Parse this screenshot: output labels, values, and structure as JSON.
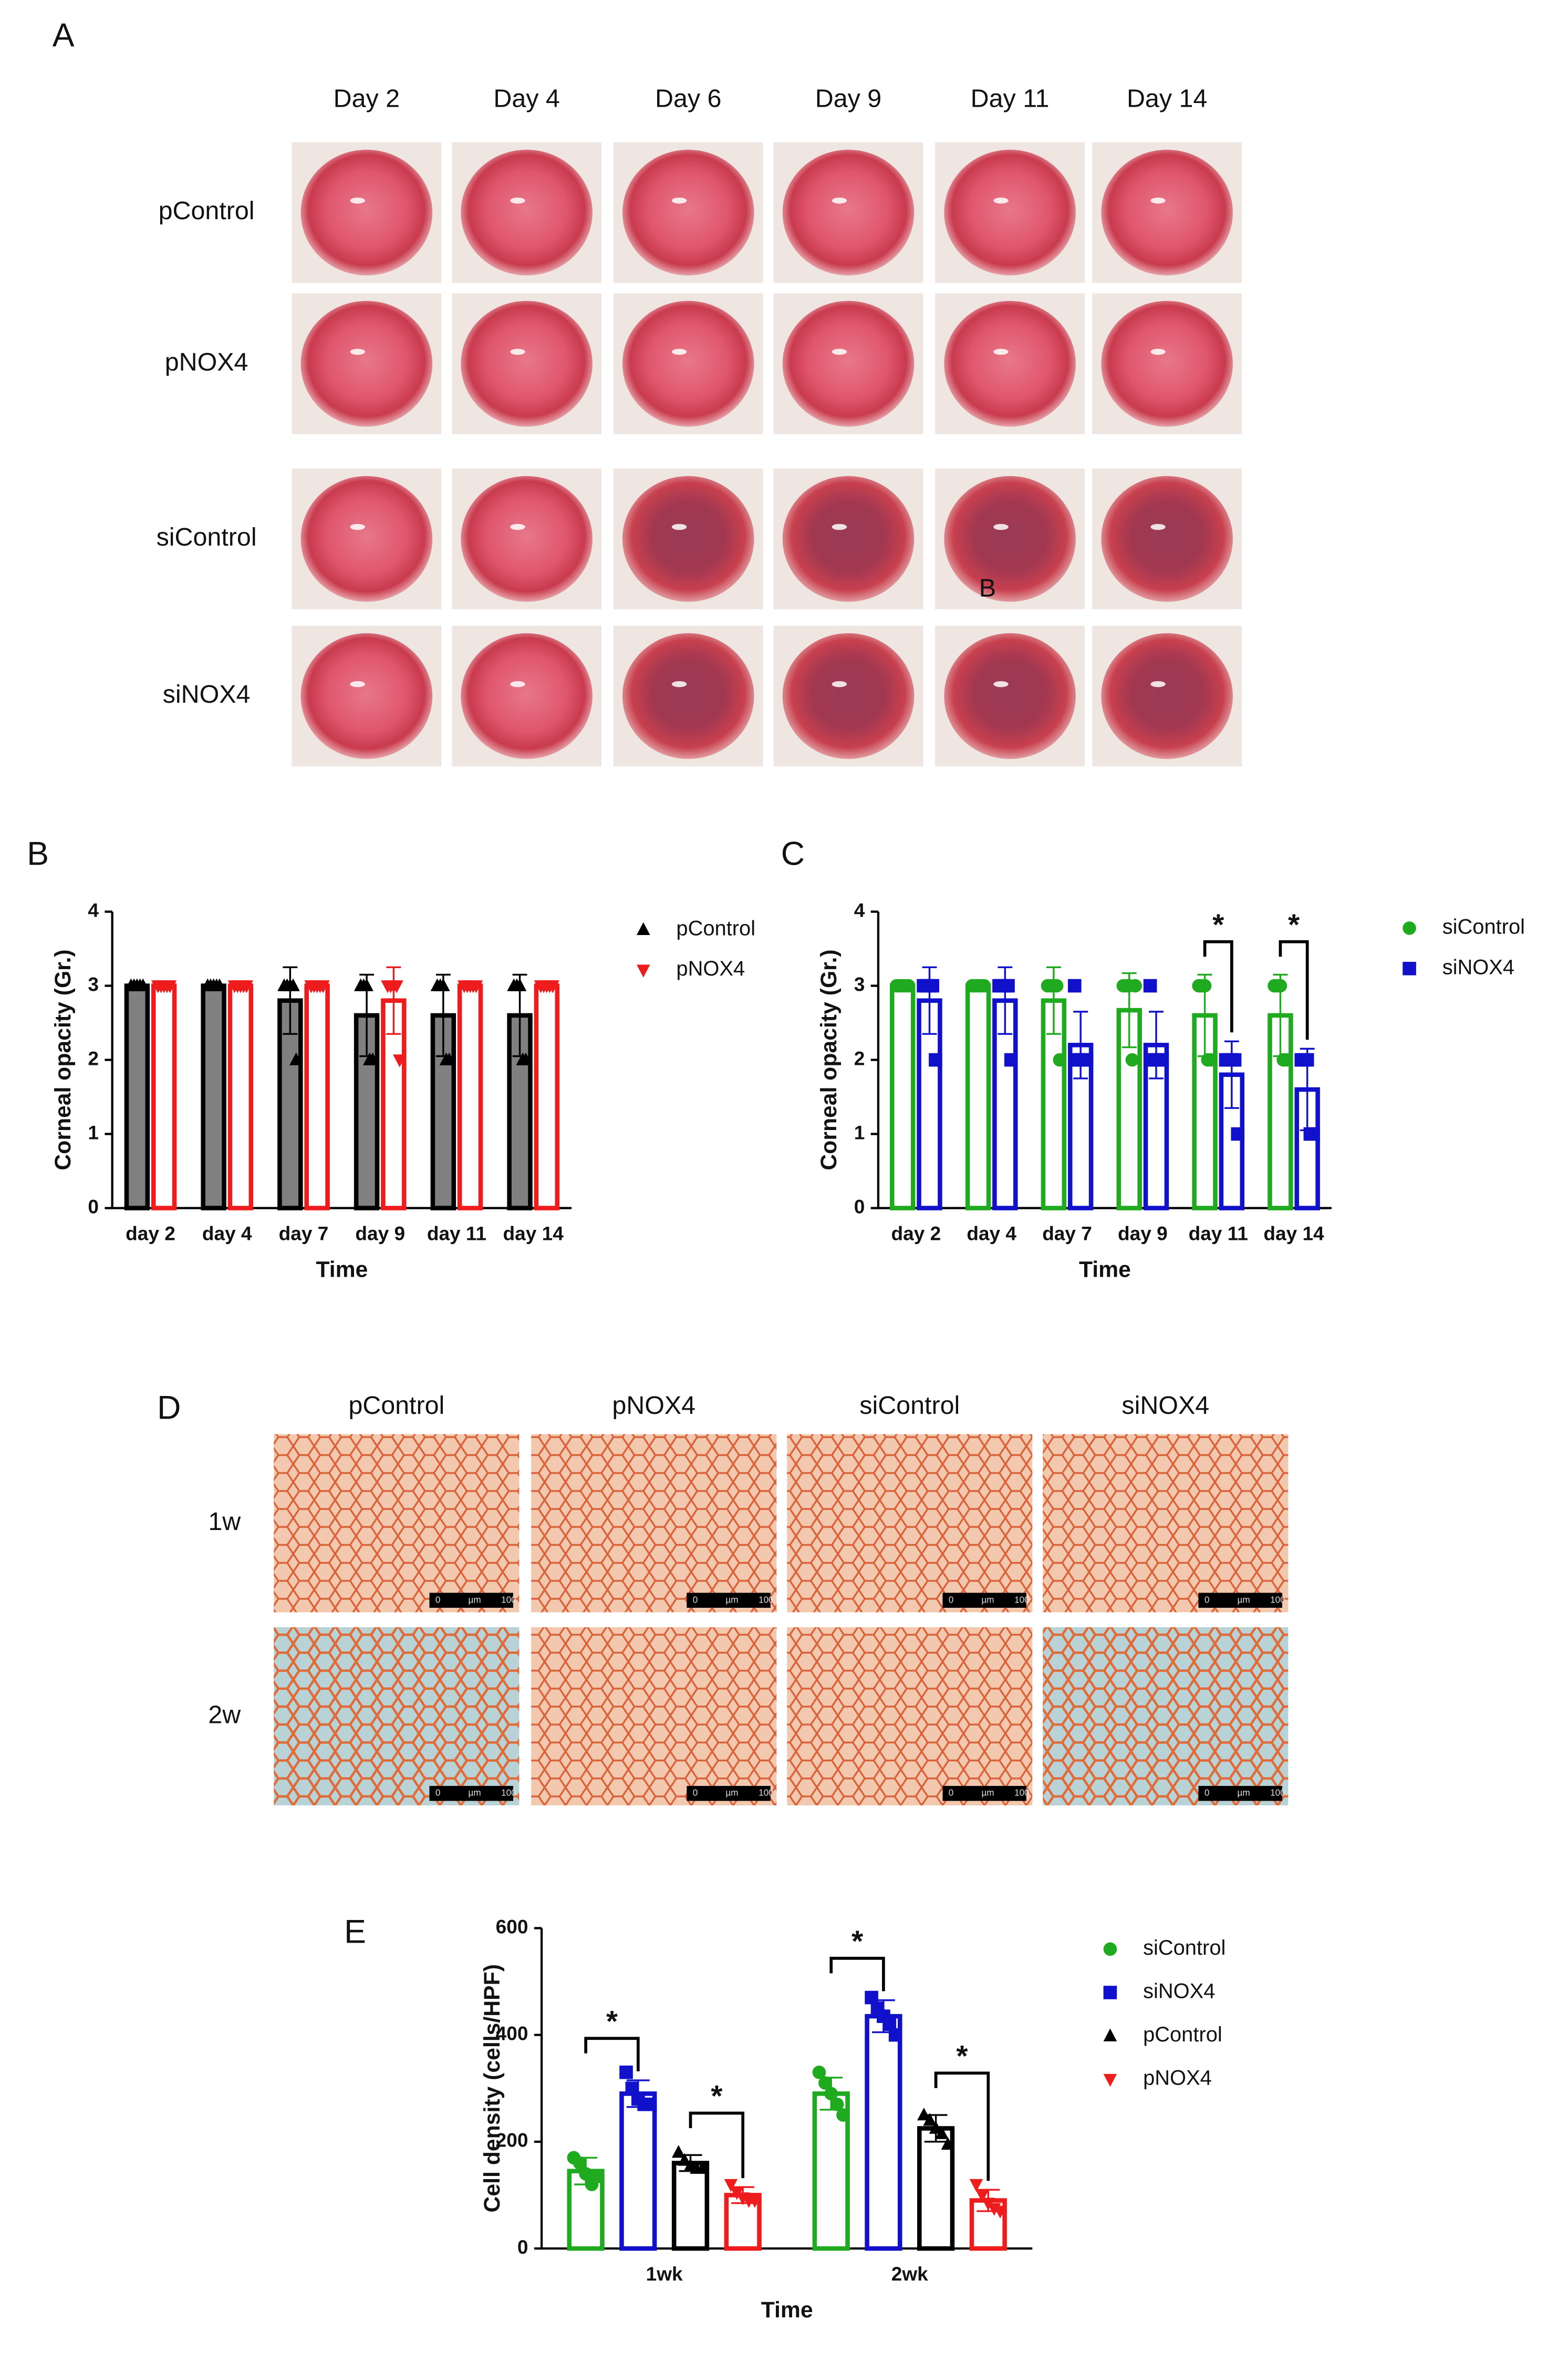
{
  "panel_labels": [
    "A",
    "B",
    "C",
    "D",
    "E"
  ],
  "panel_a": {
    "columns": [
      "Day 2",
      "Day 4",
      "Day 6",
      "Day 9",
      "Day 11",
      "Day 14"
    ],
    "rows": [
      "pControl",
      "pNOX4",
      "siControl",
      "siNOX4"
    ],
    "overlay_label": "B"
  },
  "panel_d": {
    "columns": [
      "pControl",
      "pNOX4",
      "siControl",
      "siNOX4"
    ],
    "rows": [
      "1w",
      "2w"
    ],
    "scale_bar": [
      "0",
      "µm",
      "100"
    ]
  },
  "chart_data": [
    {
      "type": "bar",
      "ylabel": "Corneal opacity (Gr.)",
      "xlabel": "Time",
      "categories": [
        "day 2",
        "day 4",
        "day 7",
        "day 9",
        "day 11",
        "day 14"
      ],
      "ylim": [
        0,
        4
      ],
      "yticks": [
        0,
        1,
        2,
        3,
        4
      ],
      "series": [
        {
          "name": "pControl",
          "color": "#000000",
          "bar_fill": "#808080",
          "marker": "triangle-up",
          "values": [
            3,
            3,
            2.8,
            2.6,
            2.6,
            2.6
          ],
          "errors": [
            0,
            0,
            0.45,
            0.55,
            0.55,
            0.55
          ],
          "points": [
            [
              3,
              3,
              3,
              3,
              3
            ],
            [
              3,
              3,
              3,
              3,
              3
            ],
            [
              3,
              3,
              3,
              3,
              2
            ],
            [
              3,
              3,
              3,
              2,
              2
            ],
            [
              3,
              3,
              3,
              2,
              2
            ],
            [
              3,
              3,
              3,
              2,
              2
            ]
          ]
        },
        {
          "name": "pNOX4",
          "color": "#ee1c1c",
          "marker": "triangle-down",
          "values": [
            3,
            3,
            3,
            2.8,
            3,
            3
          ],
          "errors": [
            0,
            0,
            0,
            0.45,
            0,
            0
          ],
          "points": [
            [
              3,
              3,
              3,
              3,
              3
            ],
            [
              3,
              3,
              3,
              3,
              3
            ],
            [
              3,
              3,
              3,
              3,
              3
            ],
            [
              3,
              3,
              3,
              3,
              2
            ],
            [
              3,
              3,
              3,
              3,
              3
            ],
            [
              3,
              3,
              3,
              3,
              3
            ]
          ]
        }
      ]
    },
    {
      "type": "bar",
      "ylabel": "Corneal opacity (Gr.)",
      "xlabel": "Time",
      "categories": [
        "day 2",
        "day 4",
        "day 7",
        "day 9",
        "day 11",
        "day 14"
      ],
      "ylim": [
        0,
        4
      ],
      "yticks": [
        0,
        1,
        2,
        3,
        4
      ],
      "series": [
        {
          "name": "siControl",
          "color": "#1faa1f",
          "marker": "circle",
          "values": [
            3,
            3,
            2.8,
            2.67,
            2.6,
            2.6
          ],
          "errors": [
            0,
            0,
            0.45,
            0.5,
            0.55,
            0.55
          ],
          "points": [
            [
              3,
              3,
              3,
              3,
              3
            ],
            [
              3,
              3,
              3,
              3,
              3
            ],
            [
              3,
              3,
              3,
              3,
              2
            ],
            [
              3,
              3,
              3,
              2,
              3
            ],
            [
              3,
              3,
              3,
              2,
              2
            ],
            [
              3,
              3,
              3,
              2,
              2
            ]
          ]
        },
        {
          "name": "siNOX4",
          "color": "#1111cc",
          "marker": "square",
          "values": [
            2.8,
            2.8,
            2.2,
            2.2,
            1.8,
            1.6
          ],
          "errors": [
            0.45,
            0.45,
            0.45,
            0.45,
            0.45,
            0.55
          ],
          "points": [
            [
              3,
              3,
              3,
              3,
              2
            ],
            [
              3,
              3,
              3,
              3,
              2
            ],
            [
              3,
              2,
              2,
              2,
              2
            ],
            [
              3,
              2,
              2,
              2,
              2
            ],
            [
              2,
              2,
              2,
              2,
              1
            ],
            [
              2,
              2,
              2,
              1,
              1
            ]
          ]
        }
      ],
      "annotations": [
        {
          "text": "*",
          "category": "day 11",
          "series": [
            "siControl",
            "siNOX4"
          ]
        },
        {
          "text": "*",
          "category": "day 14",
          "series": [
            "siControl",
            "siNOX4"
          ]
        }
      ]
    },
    {
      "type": "bar",
      "ylabel": "Cell density (cells/HPF)",
      "xlabel": "Time",
      "categories": [
        "1wk",
        "2wk"
      ],
      "ylim": [
        0,
        600
      ],
      "yticks": [
        0,
        200,
        400,
        600
      ],
      "series": [
        {
          "name": "siControl",
          "color": "#1faa1f",
          "marker": "circle",
          "values": [
            145,
            290
          ],
          "errors": [
            25,
            30
          ],
          "points": [
            [
              170,
              160,
              140,
              120,
              135
            ],
            [
              330,
              310,
              290,
              270,
              250
            ]
          ]
        },
        {
          "name": "siNOX4",
          "color": "#1111cc",
          "marker": "square",
          "values": [
            290,
            435
          ],
          "errors": [
            25,
            30
          ],
          "points": [
            [
              330,
              300,
              280,
              270,
              270
            ],
            [
              470,
              450,
              435,
              420,
              400
            ]
          ]
        },
        {
          "name": "pControl",
          "color": "#000000",
          "marker": "triangle-up",
          "values": [
            160,
            225
          ],
          "errors": [
            15,
            25
          ],
          "points": [
            [
              180,
              165,
              155,
              150,
              150
            ],
            [
              250,
              240,
              225,
              215,
              195
            ]
          ]
        },
        {
          "name": "pNOX4",
          "color": "#ee1c1c",
          "marker": "triangle-down",
          "values": [
            100,
            90
          ],
          "errors": [
            15,
            20
          ],
          "points": [
            [
              120,
              105,
              95,
              90,
              90
            ],
            [
              120,
              100,
              85,
              75,
              70
            ]
          ]
        }
      ],
      "annotations": [
        {
          "text": "*",
          "category": "1wk",
          "series": [
            "siControl",
            "siNOX4"
          ]
        },
        {
          "text": "*",
          "category": "1wk",
          "series": [
            "pControl",
            "pNOX4"
          ]
        },
        {
          "text": "*",
          "category": "2wk",
          "series": [
            "siControl",
            "siNOX4"
          ]
        },
        {
          "text": "*",
          "category": "2wk",
          "series": [
            "pControl",
            "pNOX4"
          ]
        }
      ]
    }
  ]
}
